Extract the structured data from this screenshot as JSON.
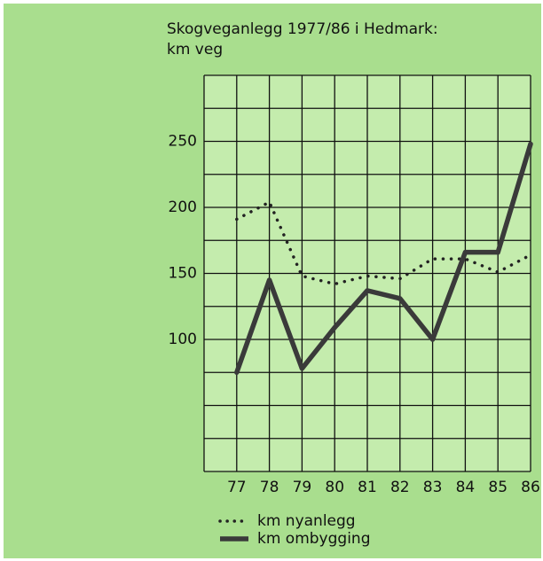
{
  "chart_data": {
    "type": "line",
    "title": "Skogveganlegg 1977/86 i Hedmark:",
    "subtitle": "km veg",
    "x": [
      77,
      78,
      79,
      80,
      81,
      82,
      83,
      84,
      85,
      86
    ],
    "xlim": [
      76,
      86
    ],
    "xticks": [
      77,
      78,
      79,
      80,
      81,
      82,
      83,
      84,
      85,
      86
    ],
    "ylim": [
      0,
      300
    ],
    "yticks": [
      100,
      150,
      200,
      250
    ],
    "grid_yticks": [
      0,
      25,
      50,
      75,
      100,
      125,
      150,
      175,
      200,
      225,
      250,
      275,
      300
    ],
    "grid_xticks": [
      76,
      77,
      78,
      79,
      80,
      81,
      82,
      83,
      84,
      85,
      86
    ],
    "grid": true,
    "series": [
      {
        "name": "km nyanlegg",
        "color": "#222222",
        "style": "dotted",
        "values": [
          191,
          204,
          148,
          142,
          148,
          146,
          161,
          161,
          151,
          164
        ]
      },
      {
        "name": "km ombygging",
        "color": "#3a3a3a",
        "style": "solid",
        "values": [
          75,
          145,
          78,
          109,
          137,
          131,
          100,
          166,
          166,
          248
        ]
      }
    ]
  }
}
